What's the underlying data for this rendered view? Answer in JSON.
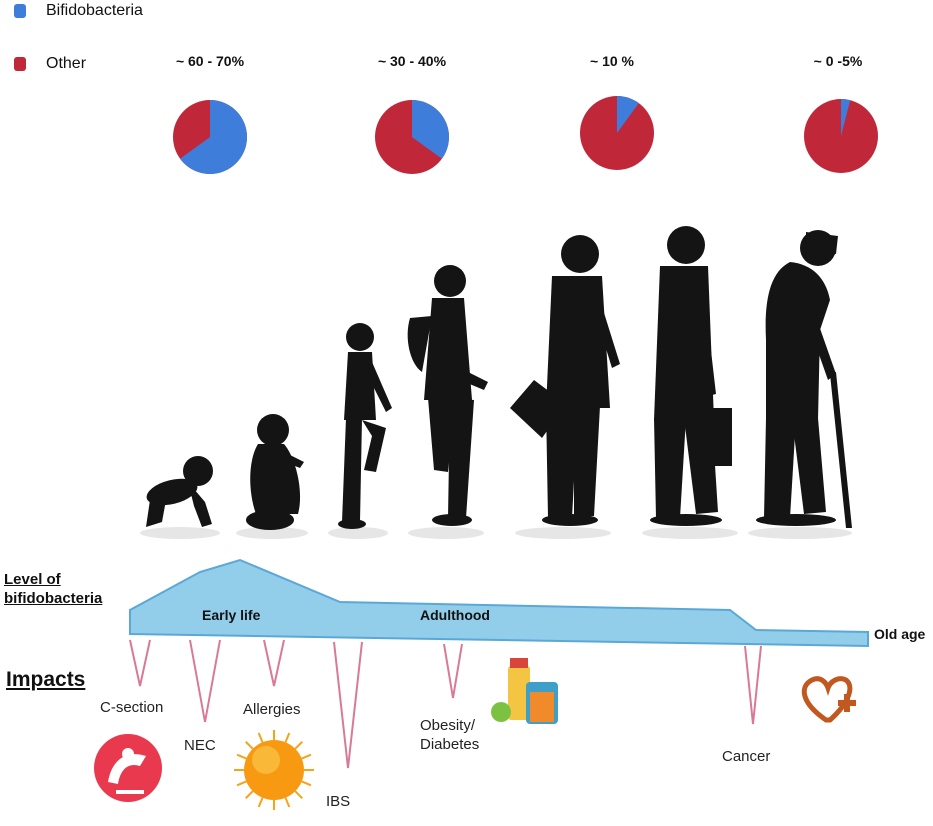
{
  "legend": [
    {
      "label": "Bifidobacteria",
      "color": "#3f7ddb"
    },
    {
      "label": "Other",
      "color": "#c0283a"
    }
  ],
  "chart_data": {
    "type": "pie",
    "series_names": [
      "Bifidobacteria",
      "Other"
    ],
    "pies": [
      {
        "label": "~ 60 - 70%",
        "bifidobacteria_percent": 65
      },
      {
        "label": "~ 30 - 40%",
        "bifidobacteria_percent": 35
      },
      {
        "label": "~ 10 %",
        "bifidobacteria_percent": 10
      },
      {
        "label": "~ 0 -5%",
        "bifidobacteria_percent": 4
      }
    ]
  },
  "level_section": {
    "title_line1": "Level of",
    "title_line2": "bifidobacteria"
  },
  "stages": {
    "early": "Early life",
    "adult": "Adulthood",
    "old": "Old age"
  },
  "impacts": {
    "title": "Impacts",
    "items": {
      "csection": "C-section",
      "nec": "NEC",
      "allergies": "Allergies",
      "ibs": "IBS",
      "obesity_line1": "Obesity/",
      "obesity_line2": "Diabetes",
      "cancer": "Cancer"
    }
  },
  "icons": [
    "c-section-icon",
    "allergy-pollen-icon",
    "food-drinks-icon",
    "heart-plus-icon"
  ],
  "colors": {
    "level_fill": "#92cdea",
    "level_stroke": "#5aa8d8",
    "impact_line": "#d97a95",
    "silhouette": "#141414"
  }
}
